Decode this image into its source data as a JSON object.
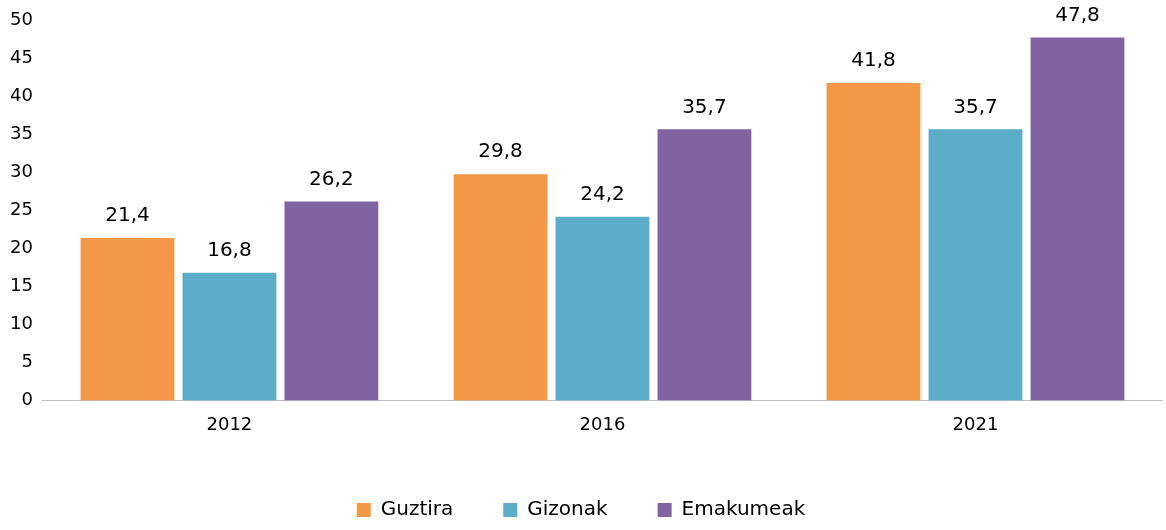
{
  "chart_data": {
    "type": "bar",
    "categories": [
      "2012",
      "2016",
      "2021"
    ],
    "series": [
      {
        "name": "Guztira",
        "color": "#f39847",
        "values": [
          21.4,
          29.8,
          41.8
        ],
        "value_labels": [
          "21,4",
          "29,8",
          "41,8"
        ]
      },
      {
        "name": "Gizonak",
        "color": "#5bacc8",
        "values": [
          16.8,
          24.2,
          35.7
        ],
        "value_labels": [
          "16,8",
          "24,2",
          "35,7"
        ]
      },
      {
        "name": "Emakumeak",
        "color": "#8064a2",
        "values": [
          26.2,
          35.7,
          47.8
        ],
        "value_labels": [
          "26,2",
          "35,7",
          "47,8"
        ]
      }
    ],
    "ylim": [
      0,
      50
    ],
    "yticks": [
      0,
      5,
      10,
      15,
      20,
      25,
      30,
      35,
      40,
      45,
      50
    ],
    "grid": false,
    "legend": "bottom"
  }
}
